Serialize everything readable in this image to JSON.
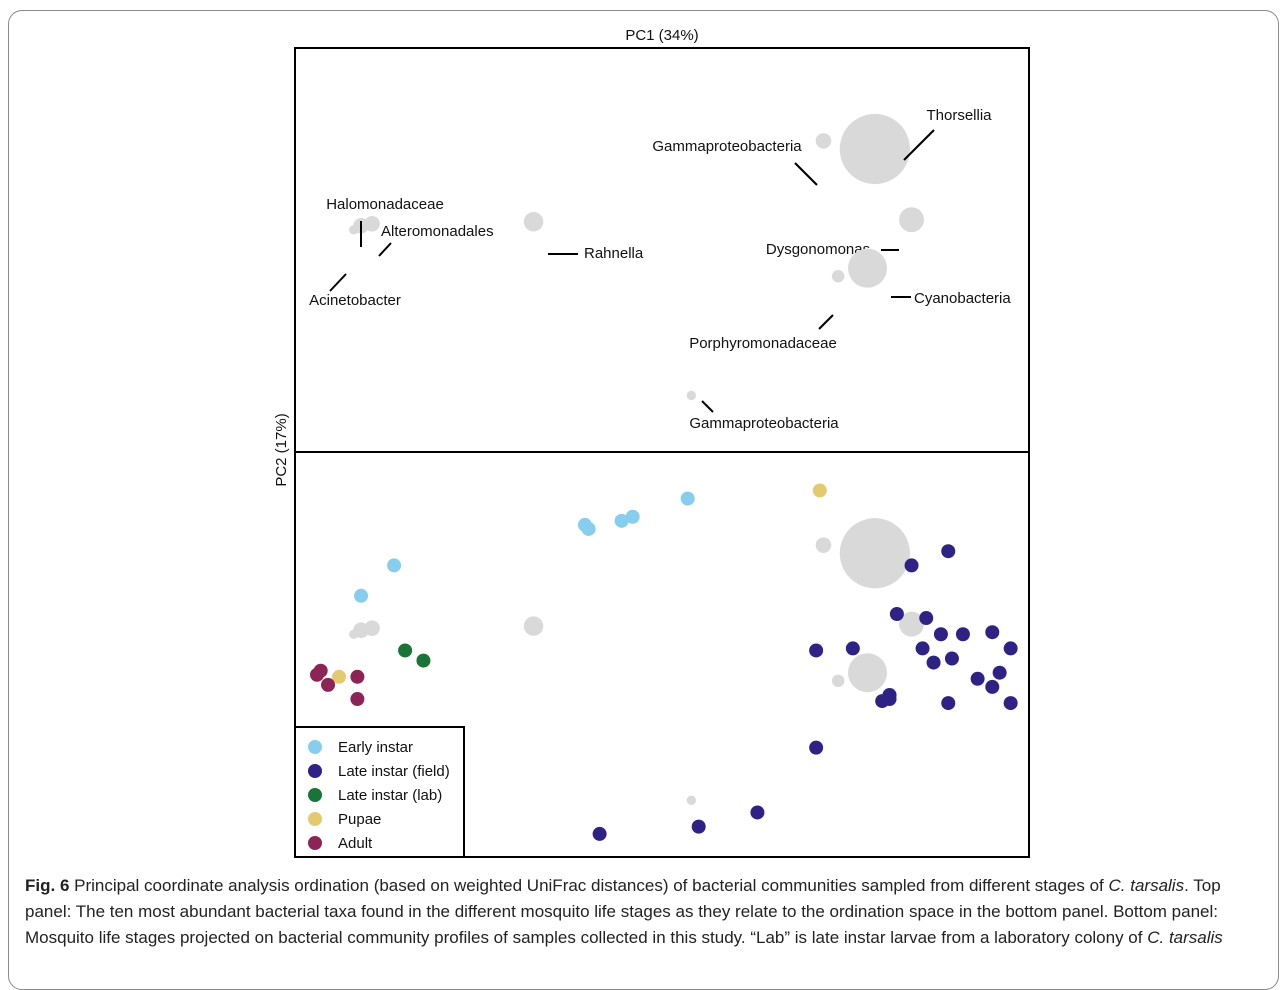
{
  "chart_data": {
    "type": "scatter",
    "xlabel": "PC1 (34%)",
    "ylabel": "PC2 (17%)",
    "xlim": [
      0,
      100
    ],
    "ylim": [
      0,
      100
    ],
    "top_panel": {
      "taxa": [
        {
          "label": "Thorsellia",
          "x": 79,
          "y": 75,
          "size": 9
        },
        {
          "label": "Gammaproteobacteria",
          "x": 72,
          "y": 77,
          "size": 2
        },
        {
          "label": "Halomonadaceae",
          "x": 9,
          "y": 56,
          "size": 2
        },
        {
          "label": "Alteromonadales",
          "x": 10.5,
          "y": 56.5,
          "size": 2
        },
        {
          "label": "Acinetobacter",
          "x": 8,
          "y": 55,
          "size": 1.2
        },
        {
          "label": "Rahnella",
          "x": 32.5,
          "y": 57,
          "size": 2.5
        },
        {
          "label": "Dysgonomonas",
          "x": 84,
          "y": 57.5,
          "size": 3.2
        },
        {
          "label": "Cyanobacteria",
          "x": 78,
          "y": 45.5,
          "size": 5
        },
        {
          "label": "Porphyromonadaceae",
          "x": 74,
          "y": 43.5,
          "size": 1.6
        },
        {
          "label": "Gammaproteobacteria",
          "x": 54,
          "y": 14,
          "size": 1.2
        }
      ]
    },
    "bottom_panel": {
      "series": [
        {
          "name": "Early instar",
          "color": "#87cdee",
          "points": [
            [
              53.5,
              88.5
            ],
            [
              46,
              84
            ],
            [
              44.5,
              83
            ],
            [
              40,
              81
            ],
            [
              39.5,
              82
            ],
            [
              13.5,
              72
            ],
            [
              9,
              64.5
            ]
          ]
        },
        {
          "name": "Late instar (field)",
          "color": "#2e2385",
          "points": [
            [
              89,
              75.5
            ],
            [
              84,
              72
            ],
            [
              82,
              60
            ],
            [
              86,
              59
            ],
            [
              88,
              55
            ],
            [
              91,
              55
            ],
            [
              95,
              55.5
            ],
            [
              97.5,
              51.5
            ],
            [
              71,
              51
            ],
            [
              76,
              51.5
            ],
            [
              89.5,
              49
            ],
            [
              87,
              48
            ],
            [
              85.5,
              51.5
            ],
            [
              93,
              44
            ],
            [
              96,
              45.5
            ],
            [
              95,
              42
            ],
            [
              81,
              40
            ],
            [
              81,
              39
            ],
            [
              89,
              38
            ],
            [
              97.5,
              38
            ],
            [
              80,
              38.5
            ],
            [
              71,
              27
            ],
            [
              63,
              11
            ],
            [
              55,
              7.5
            ],
            [
              41.5,
              5.7
            ]
          ]
        },
        {
          "name": "Late instar (lab)",
          "color": "#1a7337",
          "points": [
            [
              15,
              51
            ],
            [
              17.5,
              48.5
            ]
          ]
        },
        {
          "name": "Pupae",
          "color": "#e3ca71",
          "points": [
            [
              71.5,
              90.5
            ],
            [
              6,
              44.5
            ]
          ]
        },
        {
          "name": "Adult",
          "color": "#8c2455",
          "points": [
            [
              3.5,
              46
            ],
            [
              3,
              45
            ],
            [
              4.5,
              42.5
            ],
            [
              8.5,
              44.5
            ],
            [
              8.5,
              39
            ]
          ]
        }
      ]
    },
    "legend_position": "bottom-left"
  },
  "caption": {
    "fig_label": "Fig. 6",
    "part1": " Principal coordinate analysis ordination (based on weighted UniFrac distances) of bacterial communities sampled from different stages of ",
    "species1": "C. tarsalis",
    "part2": ". Top panel: The ten most abundant bacterial taxa found in the different mosquito life stages as they relate to the ordination space in the bottom panel. Bottom panel: Mosquito life stages projected on bacterial community profiles of samples collected in this study. “Lab” is late instar larvae from a laboratory colony of ",
    "species2": "C. tarsalis"
  }
}
